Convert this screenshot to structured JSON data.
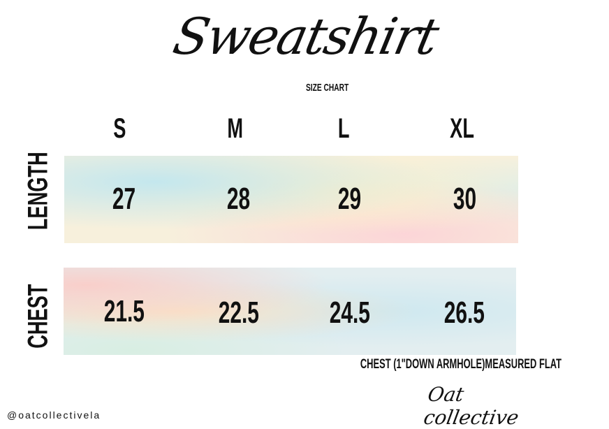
{
  "title": "Sweatshirt",
  "subtitle": "SIZE CHART",
  "sizes": [
    "S",
    "M",
    "L",
    "XL"
  ],
  "rows": [
    {
      "label": "LENGTH",
      "values": [
        "27",
        "28",
        "29",
        "30"
      ]
    },
    {
      "label": "CHEST",
      "values": [
        "21.5",
        "22.5",
        "24.5",
        "26.5"
      ]
    }
  ],
  "note": "CHEST (1\"DOWN ARMHOLE)MEASURED FLAT",
  "handle": "@oatcollectivela",
  "logo": "Oat collective"
}
